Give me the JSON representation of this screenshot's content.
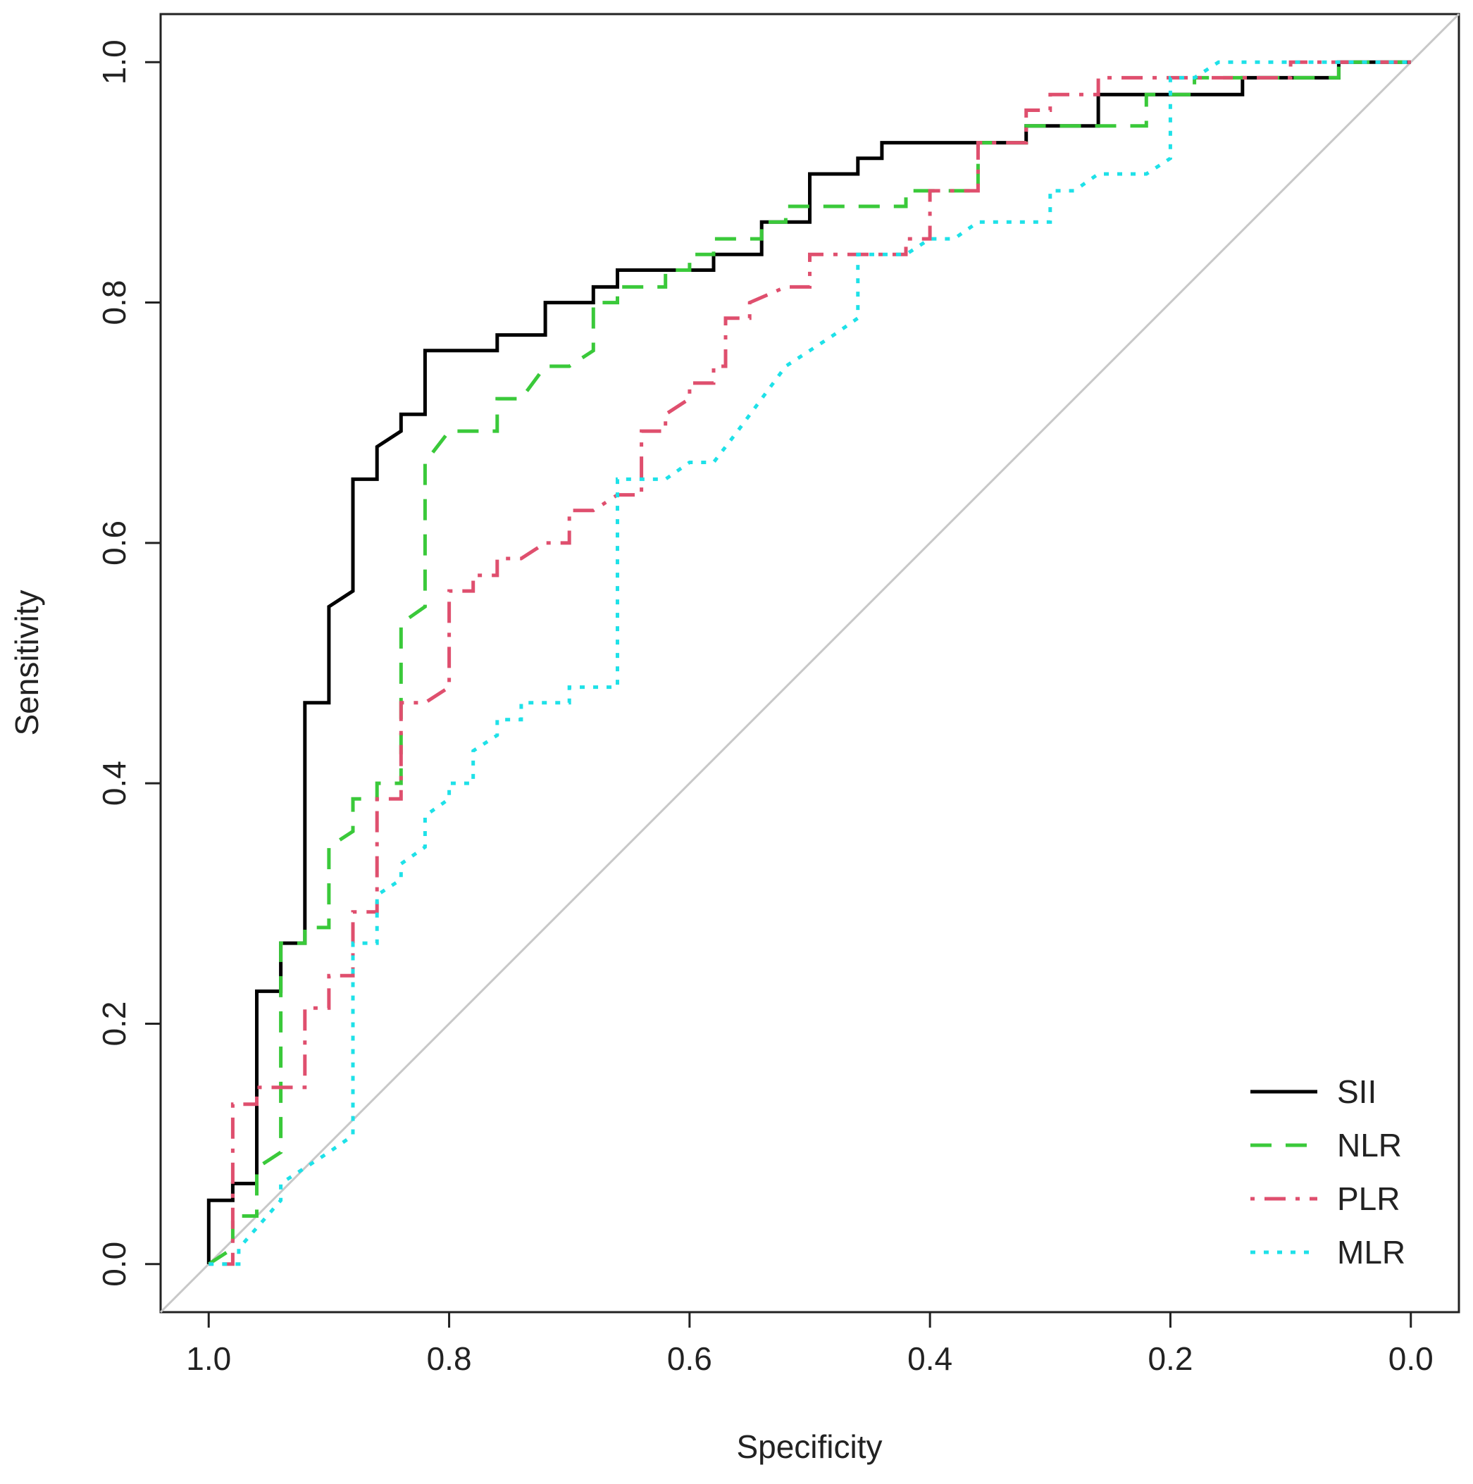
{
  "chart_data": {
    "type": "line",
    "title": "",
    "xlabel": "Specificity",
    "ylabel": "Sensitivity",
    "x_reversed": true,
    "xlim": [
      1.04,
      -0.04
    ],
    "ylim": [
      -0.04,
      1.04
    ],
    "xticks": [
      "1.0",
      "0.8",
      "0.6",
      "0.4",
      "0.2",
      "0.0"
    ],
    "xtick_values": [
      1.0,
      0.8,
      0.6,
      0.4,
      0.2,
      0.0
    ],
    "yticks": [
      "0.0",
      "0.2",
      "0.4",
      "0.6",
      "0.8",
      "1.0"
    ],
    "ytick_values": [
      0.0,
      0.2,
      0.4,
      0.6,
      0.8,
      1.0
    ],
    "grid": false,
    "legend_position": "bottom-right",
    "reference_line": {
      "from": [
        1.0,
        0.0
      ],
      "to": [
        0.0,
        1.0
      ],
      "color": "#c8c8c8"
    },
    "series": [
      {
        "name": "SII",
        "color": "#000000",
        "style": "solid",
        "points": [
          [
            1.0,
            0.0
          ],
          [
            1.0,
            0.053
          ],
          [
            0.98,
            0.053
          ],
          [
            0.98,
            0.067
          ],
          [
            0.96,
            0.067
          ],
          [
            0.96,
            0.227
          ],
          [
            0.94,
            0.227
          ],
          [
            0.94,
            0.267
          ],
          [
            0.92,
            0.267
          ],
          [
            0.92,
            0.467
          ],
          [
            0.9,
            0.467
          ],
          [
            0.9,
            0.547
          ],
          [
            0.88,
            0.56
          ],
          [
            0.88,
            0.653
          ],
          [
            0.86,
            0.653
          ],
          [
            0.86,
            0.68
          ],
          [
            0.84,
            0.693
          ],
          [
            0.84,
            0.707
          ],
          [
            0.82,
            0.707
          ],
          [
            0.82,
            0.76
          ],
          [
            0.76,
            0.76
          ],
          [
            0.76,
            0.773
          ],
          [
            0.72,
            0.773
          ],
          [
            0.72,
            0.8
          ],
          [
            0.68,
            0.8
          ],
          [
            0.68,
            0.813
          ],
          [
            0.66,
            0.813
          ],
          [
            0.66,
            0.827
          ],
          [
            0.58,
            0.827
          ],
          [
            0.58,
            0.84
          ],
          [
            0.54,
            0.84
          ],
          [
            0.54,
            0.867
          ],
          [
            0.5,
            0.867
          ],
          [
            0.5,
            0.907
          ],
          [
            0.46,
            0.907
          ],
          [
            0.46,
            0.92
          ],
          [
            0.44,
            0.92
          ],
          [
            0.44,
            0.933
          ],
          [
            0.32,
            0.933
          ],
          [
            0.32,
            0.947
          ],
          [
            0.26,
            0.947
          ],
          [
            0.26,
            0.973
          ],
          [
            0.14,
            0.973
          ],
          [
            0.14,
            0.987
          ],
          [
            0.06,
            0.987
          ],
          [
            0.06,
            1.0
          ],
          [
            0.0,
            1.0
          ]
        ]
      },
      {
        "name": "NLR",
        "color": "#3ac93a",
        "style": "dashed",
        "points": [
          [
            1.0,
            0.0
          ],
          [
            0.98,
            0.013
          ],
          [
            0.98,
            0.04
          ],
          [
            0.96,
            0.04
          ],
          [
            0.96,
            0.08
          ],
          [
            0.94,
            0.093
          ],
          [
            0.94,
            0.267
          ],
          [
            0.92,
            0.267
          ],
          [
            0.92,
            0.28
          ],
          [
            0.9,
            0.28
          ],
          [
            0.9,
            0.347
          ],
          [
            0.88,
            0.36
          ],
          [
            0.88,
            0.387
          ],
          [
            0.86,
            0.387
          ],
          [
            0.86,
            0.4
          ],
          [
            0.84,
            0.4
          ],
          [
            0.84,
            0.533
          ],
          [
            0.82,
            0.547
          ],
          [
            0.82,
            0.667
          ],
          [
            0.8,
            0.693
          ],
          [
            0.76,
            0.693
          ],
          [
            0.76,
            0.72
          ],
          [
            0.74,
            0.72
          ],
          [
            0.72,
            0.747
          ],
          [
            0.7,
            0.747
          ],
          [
            0.68,
            0.76
          ],
          [
            0.68,
            0.8
          ],
          [
            0.66,
            0.8
          ],
          [
            0.66,
            0.813
          ],
          [
            0.62,
            0.813
          ],
          [
            0.62,
            0.827
          ],
          [
            0.6,
            0.827
          ],
          [
            0.6,
            0.84
          ],
          [
            0.58,
            0.84
          ],
          [
            0.58,
            0.853
          ],
          [
            0.54,
            0.853
          ],
          [
            0.54,
            0.867
          ],
          [
            0.52,
            0.867
          ],
          [
            0.52,
            0.88
          ],
          [
            0.42,
            0.88
          ],
          [
            0.42,
            0.893
          ],
          [
            0.36,
            0.893
          ],
          [
            0.36,
            0.933
          ],
          [
            0.32,
            0.933
          ],
          [
            0.32,
            0.947
          ],
          [
            0.22,
            0.947
          ],
          [
            0.22,
            0.973
          ],
          [
            0.18,
            0.973
          ],
          [
            0.18,
            0.987
          ],
          [
            0.06,
            0.987
          ],
          [
            0.06,
            1.0
          ],
          [
            0.0,
            1.0
          ]
        ]
      },
      {
        "name": "PLR",
        "color": "#df4f6e",
        "style": "dotdash",
        "points": [
          [
            1.0,
            0.0
          ],
          [
            0.98,
            0.0
          ],
          [
            0.98,
            0.133
          ],
          [
            0.96,
            0.133
          ],
          [
            0.96,
            0.147
          ],
          [
            0.92,
            0.147
          ],
          [
            0.92,
            0.213
          ],
          [
            0.9,
            0.213
          ],
          [
            0.9,
            0.24
          ],
          [
            0.88,
            0.24
          ],
          [
            0.88,
            0.293
          ],
          [
            0.86,
            0.293
          ],
          [
            0.86,
            0.387
          ],
          [
            0.84,
            0.387
          ],
          [
            0.84,
            0.467
          ],
          [
            0.82,
            0.467
          ],
          [
            0.8,
            0.48
          ],
          [
            0.8,
            0.56
          ],
          [
            0.78,
            0.56
          ],
          [
            0.78,
            0.573
          ],
          [
            0.76,
            0.573
          ],
          [
            0.76,
            0.587
          ],
          [
            0.74,
            0.587
          ],
          [
            0.72,
            0.6
          ],
          [
            0.7,
            0.6
          ],
          [
            0.7,
            0.627
          ],
          [
            0.68,
            0.627
          ],
          [
            0.66,
            0.64
          ],
          [
            0.64,
            0.64
          ],
          [
            0.64,
            0.693
          ],
          [
            0.62,
            0.693
          ],
          [
            0.62,
            0.707
          ],
          [
            0.6,
            0.72
          ],
          [
            0.6,
            0.733
          ],
          [
            0.58,
            0.733
          ],
          [
            0.58,
            0.747
          ],
          [
            0.57,
            0.747
          ],
          [
            0.57,
            0.787
          ],
          [
            0.55,
            0.787
          ],
          [
            0.55,
            0.8
          ],
          [
            0.52,
            0.813
          ],
          [
            0.5,
            0.813
          ],
          [
            0.5,
            0.84
          ],
          [
            0.42,
            0.84
          ],
          [
            0.42,
            0.853
          ],
          [
            0.4,
            0.853
          ],
          [
            0.4,
            0.893
          ],
          [
            0.36,
            0.893
          ],
          [
            0.36,
            0.933
          ],
          [
            0.32,
            0.933
          ],
          [
            0.32,
            0.96
          ],
          [
            0.3,
            0.96
          ],
          [
            0.3,
            0.973
          ],
          [
            0.26,
            0.973
          ],
          [
            0.26,
            0.987
          ],
          [
            0.2,
            0.987
          ],
          [
            0.2,
            0.987
          ],
          [
            0.1,
            0.987
          ],
          [
            0.1,
            1.0
          ],
          [
            0.0,
            1.0
          ]
        ]
      },
      {
        "name": "MLR",
        "color": "#1ee1e8",
        "style": "dotted",
        "points": [
          [
            1.0,
            0.0
          ],
          [
            0.975,
            0.0
          ],
          [
            0.975,
            0.013
          ],
          [
            0.94,
            0.053
          ],
          [
            0.94,
            0.067
          ],
          [
            0.9,
            0.093
          ],
          [
            0.88,
            0.107
          ],
          [
            0.88,
            0.267
          ],
          [
            0.86,
            0.267
          ],
          [
            0.86,
            0.307
          ],
          [
            0.84,
            0.32
          ],
          [
            0.84,
            0.333
          ],
          [
            0.82,
            0.347
          ],
          [
            0.82,
            0.373
          ],
          [
            0.8,
            0.387
          ],
          [
            0.8,
            0.4
          ],
          [
            0.78,
            0.4
          ],
          [
            0.78,
            0.427
          ],
          [
            0.76,
            0.44
          ],
          [
            0.76,
            0.453
          ],
          [
            0.74,
            0.453
          ],
          [
            0.74,
            0.467
          ],
          [
            0.7,
            0.467
          ],
          [
            0.7,
            0.48
          ],
          [
            0.66,
            0.48
          ],
          [
            0.66,
            0.653
          ],
          [
            0.64,
            0.653
          ],
          [
            0.62,
            0.653
          ],
          [
            0.6,
            0.667
          ],
          [
            0.58,
            0.667
          ],
          [
            0.56,
            0.693
          ],
          [
            0.54,
            0.72
          ],
          [
            0.52,
            0.747
          ],
          [
            0.5,
            0.76
          ],
          [
            0.48,
            0.773
          ],
          [
            0.46,
            0.787
          ],
          [
            0.46,
            0.84
          ],
          [
            0.42,
            0.84
          ],
          [
            0.4,
            0.853
          ],
          [
            0.38,
            0.853
          ],
          [
            0.36,
            0.867
          ],
          [
            0.3,
            0.867
          ],
          [
            0.3,
            0.893
          ],
          [
            0.28,
            0.893
          ],
          [
            0.26,
            0.907
          ],
          [
            0.22,
            0.907
          ],
          [
            0.2,
            0.92
          ],
          [
            0.2,
            0.987
          ],
          [
            0.18,
            0.987
          ],
          [
            0.16,
            1.0
          ],
          [
            0.0,
            1.0
          ]
        ]
      }
    ]
  }
}
